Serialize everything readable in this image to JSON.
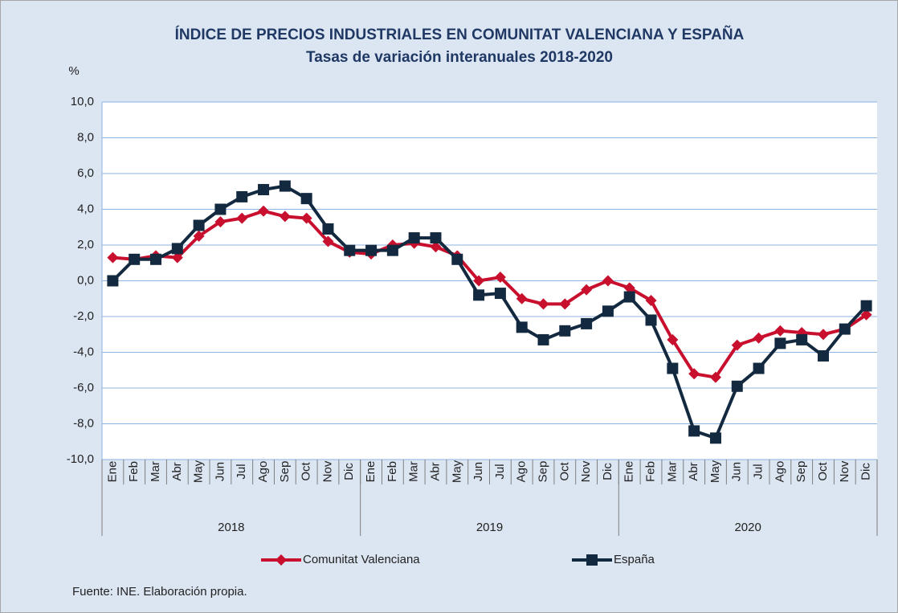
{
  "chart_data": {
    "type": "line",
    "title": "ÍNDICE DE PRECIOS INDUSTRIALES EN COMUNITAT VALENCIANA Y ESPAÑA",
    "subtitle": "Tasas de variación interanuales 2018-2020",
    "y_unit": "%",
    "source": "Fuente: INE. Elaboración propia.",
    "categories": [
      "Ene",
      "Feb",
      "Mar",
      "Abr",
      "May",
      "Jun",
      "Jul",
      "Ago",
      "Sep",
      "Oct",
      "Nov",
      "Dic",
      "Ene",
      "Feb",
      "Mar",
      "Abr",
      "May",
      "Jun",
      "Jul",
      "Ago",
      "Sep",
      "Oct",
      "Nov",
      "Dic",
      "Ene",
      "Feb",
      "Mar",
      "Abr",
      "May",
      "Jun",
      "Jul",
      "Ago",
      "Sep",
      "Oct",
      "Nov",
      "Dic"
    ],
    "groups": [
      "2018",
      "2019",
      "2020"
    ],
    "series": [
      {
        "name": "Comunitat Valenciana",
        "color": "#c8102e",
        "marker": "diamond",
        "values": [
          1.3,
          1.2,
          1.4,
          1.3,
          2.5,
          3.3,
          3.5,
          3.9,
          3.6,
          3.5,
          2.2,
          1.6,
          1.5,
          2.0,
          2.1,
          1.9,
          1.4,
          0.0,
          0.2,
          -1.0,
          -1.3,
          -1.3,
          -0.5,
          0.0,
          -0.4,
          -1.1,
          -3.3,
          -5.2,
          -5.4,
          -3.6,
          -3.2,
          -2.8,
          -2.9,
          -3.0,
          -2.7,
          -1.9
        ]
      },
      {
        "name": "España",
        "color": "#13293f",
        "marker": "square",
        "values": [
          0.0,
          1.2,
          1.2,
          1.8,
          3.1,
          4.0,
          4.7,
          5.1,
          5.3,
          4.6,
          2.9,
          1.7,
          1.7,
          1.7,
          2.4,
          2.4,
          1.2,
          -0.8,
          -0.7,
          -2.6,
          -3.3,
          -2.8,
          -2.4,
          -1.7,
          -0.9,
          -2.2,
          -4.9,
          -8.4,
          -8.8,
          -5.9,
          -4.9,
          -3.5,
          -3.3,
          -4.2,
          -2.7,
          -1.4
        ]
      }
    ],
    "ylim": [
      -10,
      10
    ],
    "yticks": [
      {
        "value": -10,
        "label": "-10,0"
      },
      {
        "value": -8,
        "label": "-8,0"
      },
      {
        "value": -6,
        "label": "-6,0"
      },
      {
        "value": -4,
        "label": "-4,0"
      },
      {
        "value": -2,
        "label": "-2,0"
      },
      {
        "value": 0,
        "label": "0,0"
      },
      {
        "value": 2,
        "label": "2,0"
      },
      {
        "value": 4,
        "label": "4,0"
      },
      {
        "value": 6,
        "label": "6,0"
      },
      {
        "value": 8,
        "label": "8,0"
      },
      {
        "value": 10,
        "label": "10,0"
      }
    ],
    "grid": true,
    "legend": "bottom"
  }
}
